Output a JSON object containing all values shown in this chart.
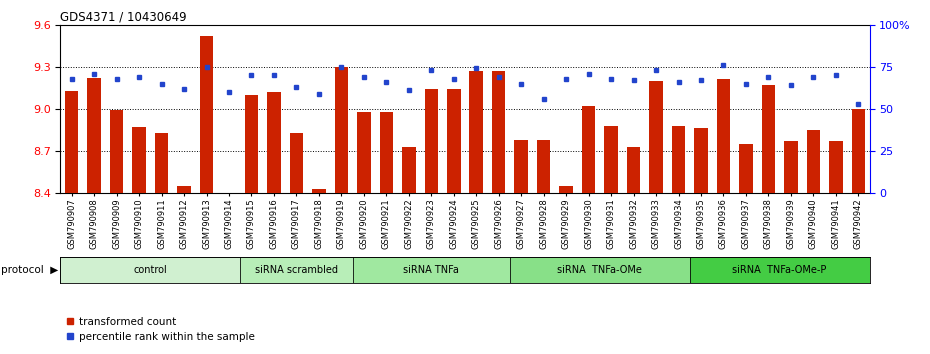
{
  "title": "GDS4371 / 10430649",
  "samples": [
    "GSM790907",
    "GSM790908",
    "GSM790909",
    "GSM790910",
    "GSM790911",
    "GSM790912",
    "GSM790913",
    "GSM790914",
    "GSM790915",
    "GSM790916",
    "GSM790917",
    "GSM790918",
    "GSM790919",
    "GSM790920",
    "GSM790921",
    "GSM790922",
    "GSM790923",
    "GSM790924",
    "GSM790925",
    "GSM790926",
    "GSM790927",
    "GSM790928",
    "GSM790929",
    "GSM790930",
    "GSM790931",
    "GSM790932",
    "GSM790933",
    "GSM790934",
    "GSM790935",
    "GSM790936",
    "GSM790937",
    "GSM790938",
    "GSM790939",
    "GSM790940",
    "GSM790941",
    "GSM790942"
  ],
  "bar_values": [
    9.13,
    9.22,
    8.99,
    8.87,
    8.83,
    8.45,
    9.52,
    8.4,
    9.1,
    9.12,
    8.83,
    8.43,
    9.3,
    8.98,
    8.98,
    8.73,
    9.14,
    9.14,
    9.27,
    9.27,
    8.78,
    8.78,
    8.45,
    9.02,
    8.88,
    8.73,
    9.2,
    8.88,
    8.86,
    9.21,
    8.75,
    9.17,
    8.77,
    8.85,
    8.77,
    9.0
  ],
  "dot_values": [
    68,
    71,
    68,
    69,
    65,
    62,
    75,
    60,
    70,
    70,
    63,
    59,
    75,
    69,
    66,
    61,
    73,
    68,
    74,
    69,
    65,
    56,
    68,
    71,
    68,
    67,
    73,
    66,
    67,
    76,
    65,
    69,
    64,
    69,
    70,
    53
  ],
  "groups": [
    {
      "label": "control",
      "start": 0,
      "end": 8,
      "color": "#d0f0d0"
    },
    {
      "label": "siRNA scrambled",
      "start": 8,
      "end": 13,
      "color": "#b8eeb8"
    },
    {
      "label": "siRNA TNFa",
      "start": 13,
      "end": 20,
      "color": "#a0e8a0"
    },
    {
      "label": "siRNA  TNFa-OMe",
      "start": 20,
      "end": 28,
      "color": "#88e088"
    },
    {
      "label": "siRNA  TNFa-OMe-P",
      "start": 28,
      "end": 36,
      "color": "#44cc44"
    }
  ],
  "ylim_left": [
    8.4,
    9.6
  ],
  "ylim_right": [
    0,
    100
  ],
  "bar_color": "#cc2200",
  "dot_color": "#2244cc",
  "legend_bar_label": "transformed count",
  "legend_dot_label": "percentile rank within the sample"
}
